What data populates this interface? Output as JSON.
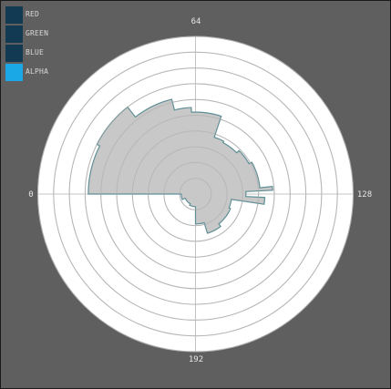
{
  "legend": {
    "items": [
      {
        "label": "RED",
        "color": "#123a52",
        "active": false
      },
      {
        "label": "GREEN",
        "color": "#123a52",
        "active": false
      },
      {
        "label": "BLUE",
        "color": "#123a52",
        "active": false
      },
      {
        "label": "ALPHA",
        "color": "#1aa9e6",
        "active": true
      }
    ]
  },
  "chart_data": {
    "type": "polar-area",
    "channel": "ALPHA",
    "angle_labels": [
      "64",
      "128",
      "192",
      "0"
    ],
    "angle_ticks": [
      64,
      128,
      192,
      0
    ],
    "angle_range": [
      0,
      256
    ],
    "r_range": [
      0,
      10
    ],
    "ring_count": 10,
    "fill_color": "#c8c8c8",
    "outline_color": "#5f8f96",
    "histogram": [
      {
        "from": 0,
        "to": 19,
        "r": 6.8
      },
      {
        "from": 19,
        "to": 37,
        "r": 7.0
      },
      {
        "from": 37,
        "to": 54,
        "r": 6.2
      },
      {
        "from": 54,
        "to": 62,
        "r": 5.5
      },
      {
        "from": 62,
        "to": 77,
        "r": 5.2
      },
      {
        "from": 77,
        "to": 84,
        "r": 3.8
      },
      {
        "from": 84,
        "to": 96,
        "r": 3.7
      },
      {
        "from": 96,
        "to": 107,
        "r": 3.9
      },
      {
        "from": 107,
        "to": 124,
        "r": 4.1
      },
      {
        "from": 124,
        "to": 126,
        "r": 4.9
      },
      {
        "from": 126,
        "to": 130,
        "r": 3.2
      },
      {
        "from": 130,
        "to": 134,
        "r": 4.4
      },
      {
        "from": 134,
        "to": 144,
        "r": 2.3
      },
      {
        "from": 144,
        "to": 165,
        "r": 2.4
      },
      {
        "from": 165,
        "to": 180,
        "r": 2.6
      },
      {
        "from": 180,
        "to": 192,
        "r": 1.9
      },
      {
        "from": 192,
        "to": 212,
        "r": 0.8
      },
      {
        "from": 212,
        "to": 240,
        "r": 0.7
      },
      {
        "from": 240,
        "to": 256,
        "r": 0.9
      }
    ]
  }
}
